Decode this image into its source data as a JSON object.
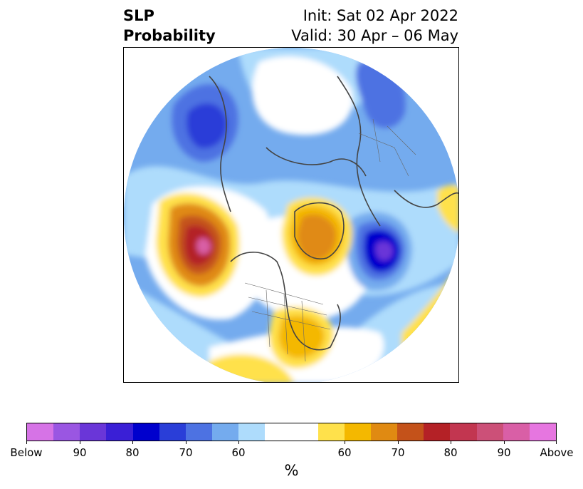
{
  "title": {
    "left_line1": "SLP",
    "left_line2": "Probability",
    "right_line1": "Init: Sat 02 Apr 2022",
    "right_line2": "Valid: 30 Apr – 06 May"
  },
  "map": {
    "projection": "north-polar-stereographic",
    "anomalies": [
      {
        "region": "north-pacific-gulf-of-alaska",
        "sign": "above",
        "peak_percent": 90
      },
      {
        "region": "greenland-canadian-arctic",
        "sign": "above",
        "peak_percent": 70
      },
      {
        "region": "eastern-united-states",
        "sign": "above",
        "peak_percent": 70
      },
      {
        "region": "north-atlantic-iceland",
        "sign": "below",
        "peak_percent": 90
      },
      {
        "region": "siberia-east-asia",
        "sign": "below",
        "peak_percent": 80
      },
      {
        "region": "northern-europe-scandinavia",
        "sign": "below",
        "peak_percent": 70
      }
    ]
  },
  "colorbar": {
    "colors": [
      "#d673e6",
      "#9a56e2",
      "#6a36d8",
      "#3a1fd6",
      "#0000cd",
      "#2a3ed8",
      "#4d72e2",
      "#74abee",
      "#aedcfc",
      "#ffffff",
      "#ffe14b",
      "#f4b800",
      "#e08a12",
      "#c4521a",
      "#b42126",
      "#c23650",
      "#cc5078",
      "#d95fa6",
      "#e676e0"
    ],
    "tick_labels": [
      "Below",
      "90",
      "80",
      "70",
      "60",
      "60",
      "70",
      "80",
      "90",
      "Above"
    ],
    "unit": "%"
  }
}
